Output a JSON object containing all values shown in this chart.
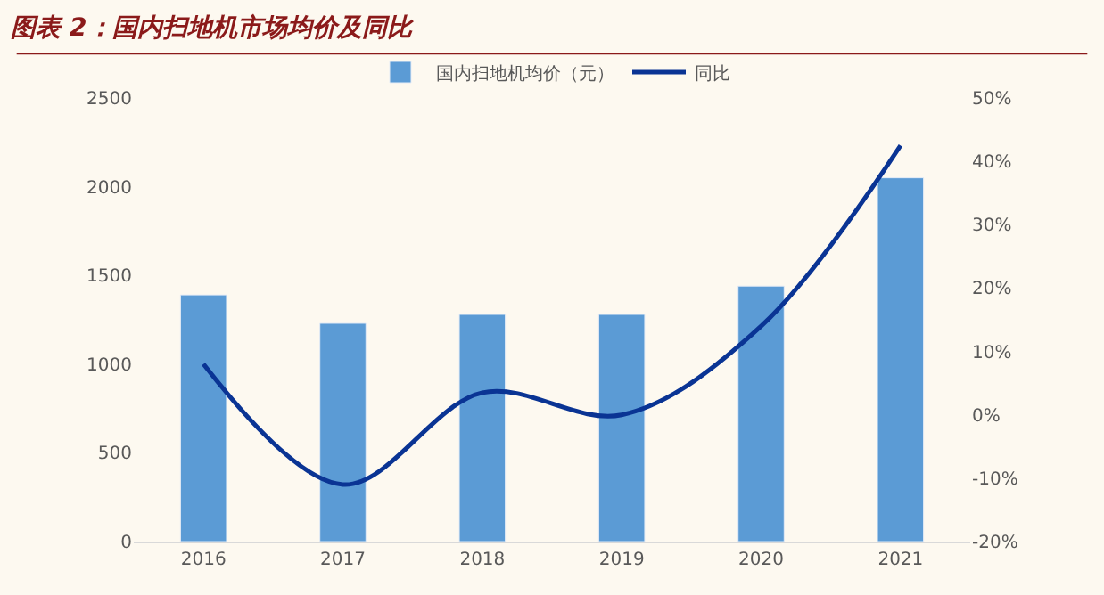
{
  "chart_data": {
    "type": "bar",
    "title": "图表 2：国内扫地机市场均价及同比",
    "categories": [
      "2016",
      "2017",
      "2018",
      "2019",
      "2020",
      "2021"
    ],
    "series": [
      {
        "name": "国内扫地机均价（元）",
        "color": "#5b9bd5",
        "values": [
          1390,
          1230,
          1280,
          1280,
          1440,
          2050
        ]
      },
      {
        "name": "同比",
        "type": "line",
        "axis": "y2",
        "color": "#0a3494",
        "values": [
          8,
          -11,
          3.5,
          0,
          14,
          42.5
        ],
        "marker": "none",
        "line_style": "solid"
      }
    ],
    "ylim": [
      0,
      2500
    ],
    "yticks": [
      0,
      500,
      1000,
      1500,
      2000,
      2500
    ],
    "y2lim": [
      -20,
      50
    ],
    "y2ticks": [
      {
        "value": -20,
        "label": "-20%"
      },
      {
        "value": -10,
        "label": "-10%"
      },
      {
        "value": 0,
        "label": "0%"
      },
      {
        "value": 10,
        "label": "10%"
      },
      {
        "value": 20,
        "label": "20%"
      },
      {
        "value": 30,
        "label": "30%"
      },
      {
        "value": 40,
        "label": "40%"
      },
      {
        "value": 50,
        "label": "50%"
      }
    ],
    "grid": false,
    "legend": "top"
  }
}
